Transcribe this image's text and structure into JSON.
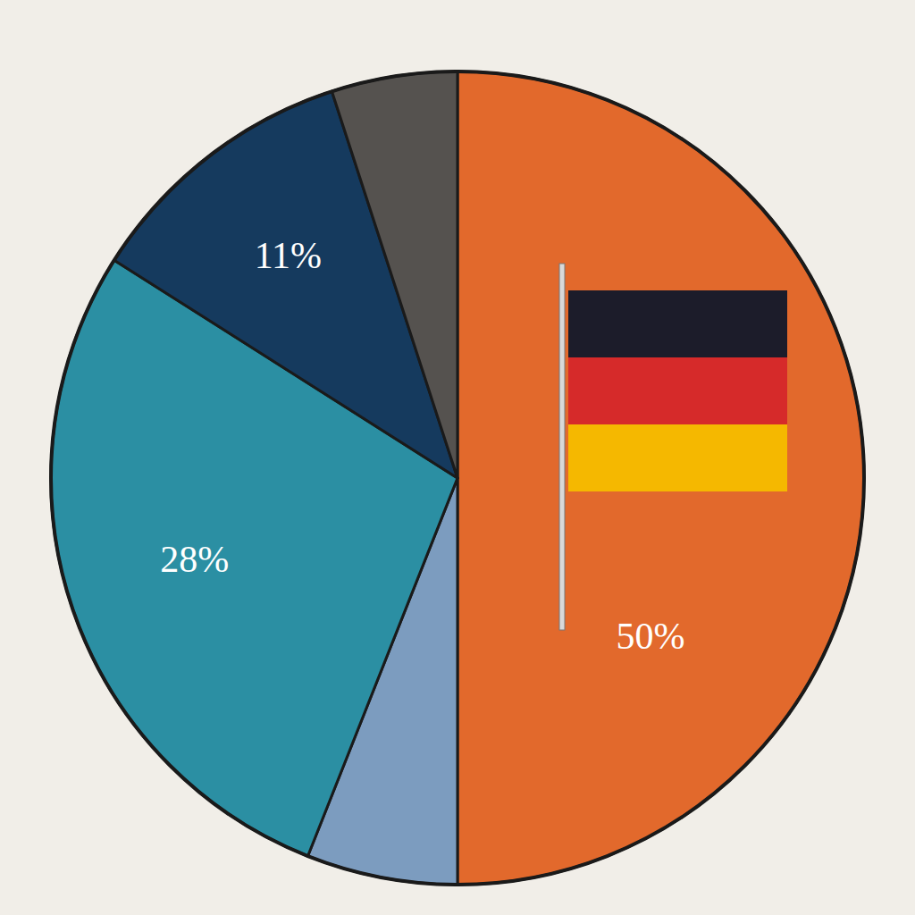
{
  "chart_data": {
    "type": "pie",
    "categories": [
      null,
      null,
      null,
      null,
      null
    ],
    "values": [
      50,
      6,
      28,
      11,
      5
    ],
    "value_labels": [
      "50%",
      null,
      "28%",
      "11%",
      null
    ],
    "colors": [
      "#e2692c",
      "#7c9cbf",
      "#2b8fa3",
      "#153a5e",
      "#55524f"
    ],
    "data_labels": true
  }
}
